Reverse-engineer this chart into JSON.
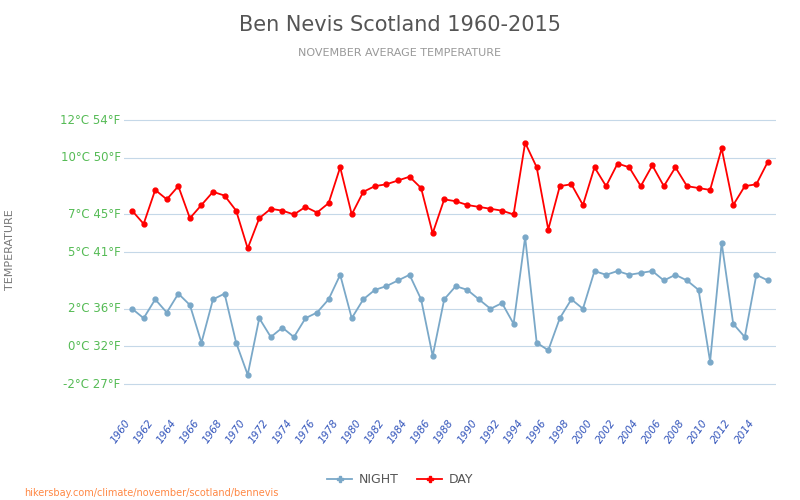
{
  "title": "Ben Nevis Scotland 1960-2015",
  "subtitle": "NOVEMBER AVERAGE TEMPERATURE",
  "ylabel": "TEMPERATURE",
  "watermark": "hikersbay.com/climate/november/scotland/bennevis",
  "bg_color": "#ffffff",
  "grid_color": "#c5d8e8",
  "title_color": "#555555",
  "subtitle_color": "#999999",
  "ylabel_color": "#777777",
  "xtick_color": "#3355bb",
  "ytick_color": "#55bb55",
  "day_color": "#ff0000",
  "night_color": "#7aa8c8",
  "years": [
    1960,
    1961,
    1962,
    1963,
    1964,
    1965,
    1966,
    1967,
    1968,
    1969,
    1970,
    1971,
    1972,
    1973,
    1974,
    1975,
    1976,
    1977,
    1978,
    1979,
    1980,
    1981,
    1982,
    1983,
    1984,
    1985,
    1986,
    1987,
    1988,
    1989,
    1990,
    1991,
    1992,
    1993,
    1994,
    1995,
    1996,
    1997,
    1998,
    1999,
    2000,
    2001,
    2002,
    2003,
    2004,
    2005,
    2006,
    2007,
    2008,
    2009,
    2010,
    2011,
    2012,
    2013,
    2014,
    2015
  ],
  "day_temps": [
    7.2,
    6.5,
    8.3,
    7.8,
    8.5,
    6.8,
    7.5,
    8.2,
    8.0,
    7.2,
    5.2,
    6.8,
    7.3,
    7.2,
    7.0,
    7.4,
    7.1,
    7.6,
    9.5,
    7.0,
    8.2,
    8.5,
    8.6,
    8.8,
    9.0,
    8.4,
    6.0,
    7.8,
    7.7,
    7.5,
    7.4,
    7.3,
    7.2,
    7.0,
    10.8,
    9.5,
    6.2,
    8.5,
    8.6,
    7.5,
    9.5,
    8.5,
    9.7,
    9.5,
    8.5,
    9.6,
    8.5,
    9.5,
    8.5,
    8.4,
    8.3,
    10.5,
    7.5,
    8.5,
    8.6,
    9.8
  ],
  "night_temps": [
    2.0,
    1.5,
    2.5,
    1.8,
    2.8,
    2.2,
    0.2,
    2.5,
    2.8,
    0.2,
    -1.5,
    1.5,
    0.5,
    1.0,
    0.5,
    1.5,
    1.8,
    2.5,
    3.8,
    1.5,
    2.5,
    3.0,
    3.2,
    3.5,
    3.8,
    2.5,
    -0.5,
    2.5,
    3.2,
    3.0,
    2.5,
    2.0,
    2.3,
    1.2,
    5.8,
    0.2,
    -0.2,
    1.5,
    2.5,
    2.0,
    4.0,
    3.8,
    4.0,
    3.8,
    3.9,
    4.0,
    3.5,
    3.8,
    3.5,
    3.0,
    -0.8,
    5.5,
    1.2,
    0.5,
    3.8,
    3.5
  ],
  "yticks_celsius": [
    -2,
    0,
    2,
    5,
    7,
    10,
    12
  ],
  "yticks_fahrenheit": [
    27,
    32,
    36,
    41,
    45,
    50,
    54
  ],
  "ylim": [
    -3.5,
    13.2
  ],
  "xlim": [
    1959.3,
    2015.7
  ]
}
